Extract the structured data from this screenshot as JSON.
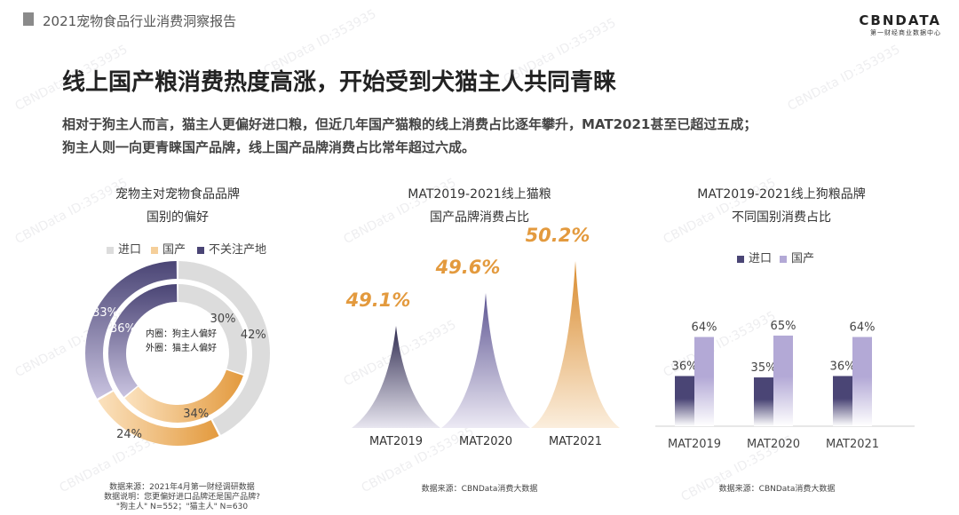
{
  "header": {
    "report_title": "2021宠物食品行业消费洞察报告",
    "logo_main": "CBNDATA",
    "logo_sub": "第一财经商业数据中心"
  },
  "headline": "线上国产粮消费热度高涨，开始受到犬猫主人共同青睐",
  "description": {
    "line1": "相对于狗主人而言，猫主人更偏好进口粮，但近几年国产猫粮的线上消费占比逐年攀升，MAT2021甚至已超过五成；",
    "line2": "狗主人则一向更青睐国产品牌，线上国产品牌消费占比常年超过六成。"
  },
  "watermark": "CBNData ID:353935",
  "colors": {
    "dark_purple": "#4a4575",
    "light_purple": "#b3a9d6",
    "orange": "#e39a3e",
    "light_orange": "#f5cf9a",
    "gray": "#dcdcdc"
  },
  "chart1": {
    "title_line1": "宠物主对宠物食品品牌",
    "title_line2": "国别的偏好",
    "legend": [
      "进口",
      "国产",
      "不关注产地"
    ],
    "center_line1": "内圈：狗主人偏好",
    "center_line2": "外圈：猫主人偏好",
    "source_line1": "数据来源：2021年4月第一财经调研数据",
    "source_line2": "数据说明：您更偏好进口品牌还是国产品牌?",
    "source_line3": "\"狗主人\" N=552；\"猫主人\" N=630"
  },
  "chart2": {
    "title_line1": "MAT2019-2021线上猫粮",
    "title_line2": "国产品牌消费占比",
    "source": "数据来源：CBNData消费大数据"
  },
  "chart3": {
    "title_line1": "MAT2019-2021线上狗粮品牌",
    "title_line2": "不同国别消费占比",
    "legend": [
      "进口",
      "国产"
    ],
    "source": "数据来源：CBNData消费大数据"
  },
  "chart_data": [
    {
      "type": "pie",
      "title": "宠物主对宠物食品品牌国别的偏好",
      "series": [
        {
          "name": "外圈：猫主人偏好",
          "categories": [
            "进口",
            "国产",
            "不关注产地"
          ],
          "values": [
            42,
            24,
            33
          ],
          "labels": [
            "42%",
            "24%",
            "33%"
          ]
        },
        {
          "name": "内圈：狗主人偏好",
          "categories": [
            "进口",
            "国产",
            "不关注产地"
          ],
          "values": [
            30,
            34,
            36
          ],
          "labels": [
            "30%",
            "34%",
            "36%"
          ]
        }
      ]
    },
    {
      "type": "area",
      "title": "MAT2019-2021线上猫粮国产品牌消费占比",
      "categories": [
        "MAT2019",
        "MAT2020",
        "MAT2021"
      ],
      "values": [
        49.1,
        49.6,
        50.2
      ],
      "labels": [
        "49.1%",
        "49.6%",
        "50.2%"
      ]
    },
    {
      "type": "bar",
      "title": "MAT2019-2021线上狗粮品牌不同国别消费占比",
      "categories": [
        "MAT2019",
        "MAT2020",
        "MAT2021"
      ],
      "ylim": [
        0,
        100
      ],
      "series": [
        {
          "name": "进口",
          "values": [
            36,
            35,
            36
          ],
          "labels": [
            "36%",
            "35%",
            "36%"
          ]
        },
        {
          "name": "国产",
          "values": [
            64,
            65,
            64
          ],
          "labels": [
            "64%",
            "65%",
            "64%"
          ]
        }
      ]
    }
  ]
}
